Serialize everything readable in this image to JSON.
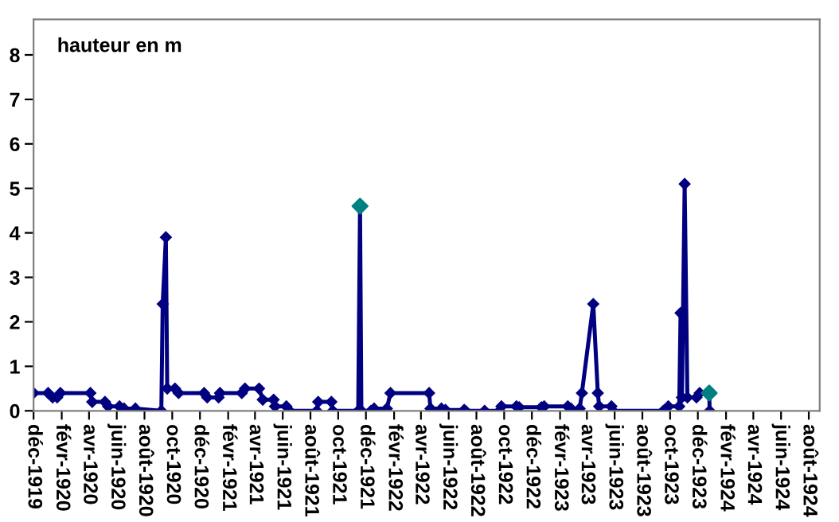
{
  "chart_data": {
    "type": "line",
    "ylabel": "hauteur en m",
    "ylim": [
      0,
      8.8
    ],
    "yticks": [
      0,
      1,
      2,
      3,
      4,
      5,
      6,
      7,
      8
    ],
    "xlim": [
      "1919-12-01",
      "1924-08-25"
    ],
    "xticks": [
      {
        "value": "1919-12",
        "label": "déc-1919"
      },
      {
        "value": "1920-02",
        "label": "févr-1920"
      },
      {
        "value": "1920-04",
        "label": "avr-1920"
      },
      {
        "value": "1920-06",
        "label": "juin-1920"
      },
      {
        "value": "1920-08",
        "label": "août-1920"
      },
      {
        "value": "1920-10",
        "label": "oct-1920"
      },
      {
        "value": "1920-12",
        "label": "déc-1920"
      },
      {
        "value": "1921-02",
        "label": "févr-1921"
      },
      {
        "value": "1921-04",
        "label": "avr-1921"
      },
      {
        "value": "1921-06",
        "label": "juin-1921"
      },
      {
        "value": "1921-08",
        "label": "août-1921"
      },
      {
        "value": "1921-10",
        "label": "oct-1921"
      },
      {
        "value": "1921-12",
        "label": "déc-1921"
      },
      {
        "value": "1922-02",
        "label": "févr-1922"
      },
      {
        "value": "1922-04",
        "label": "avr-1922"
      },
      {
        "value": "1922-06",
        "label": "juin-1922"
      },
      {
        "value": "1922-08",
        "label": "août-1922"
      },
      {
        "value": "1922-10",
        "label": "oct-1922"
      },
      {
        "value": "1922-12",
        "label": "déc-1922"
      },
      {
        "value": "1923-02",
        "label": "févr-1923"
      },
      {
        "value": "1923-04",
        "label": "avr-1923"
      },
      {
        "value": "1923-06",
        "label": "juin-1923"
      },
      {
        "value": "1923-08",
        "label": "août-1923"
      },
      {
        "value": "1923-10",
        "label": "oct-1923"
      },
      {
        "value": "1923-12",
        "label": "déc-1923"
      },
      {
        "value": "1924-02",
        "label": "févr-1924"
      },
      {
        "value": "1924-04",
        "label": "avr-1924"
      },
      {
        "value": "1924-06",
        "label": "juin-1924"
      },
      {
        "value": "1924-08",
        "label": "août-1924"
      }
    ],
    "grid": false,
    "marker": "diamond",
    "line_style": "solid",
    "series": [
      {
        "color": "#000080",
        "x": [
          "1919-12-01",
          "1920-01-02",
          "1920-01-12",
          "1920-01-22",
          "1920-01-29",
          "1920-04-04",
          "1920-04-08",
          "1920-05-06",
          "1920-05-13",
          "1920-06-07",
          "1920-06-17",
          "1920-07-12",
          "1920-09-07",
          "1920-09-10",
          "1920-09-17",
          "1920-09-20",
          "1920-10-07",
          "1920-10-15",
          "1920-12-10",
          "1920-12-17",
          "1921-01-11",
          "1921-01-14",
          "1921-03-03",
          "1921-03-10",
          "1921-04-10",
          "1921-04-18",
          "1921-05-12",
          "1921-05-15",
          "1921-06-09",
          "1921-06-16",
          "1921-08-15",
          "1921-08-18",
          "1921-09-16",
          "1921-09-19",
          "1921-11-14",
          "1921-11-18",
          "1921-11-21",
          "1921-12-12",
          "1921-12-19",
          "1922-01-16",
          "1922-01-24",
          "1922-04-19",
          "1922-04-22",
          "1922-05-16",
          "1922-05-25",
          "1922-07-05",
          "1922-07-08",
          "1922-08-19",
          "1922-09-21",
          "1922-09-25",
          "1922-10-28",
          "1922-11-03",
          "1922-12-22",
          "1922-12-28",
          "1923-02-18",
          "1923-02-25",
          "1923-03-16",
          "1923-03-21",
          "1923-04-15",
          "1923-04-25",
          "1923-04-28",
          "1923-05-25",
          "1923-05-28",
          "1923-09-16",
          "1923-09-27",
          "1923-10-21",
          "1923-10-24",
          "1923-10-27",
          "1923-11-02",
          "1923-11-08",
          "1923-11-28",
          "1923-12-05",
          "1923-12-26",
          "1923-12-27"
        ],
        "values": [
          0.4,
          0.4,
          0.3,
          0.3,
          0.4,
          0.4,
          0.2,
          0.2,
          0.1,
          0.1,
          0.05,
          0.05,
          0,
          2.4,
          3.9,
          0.5,
          0.5,
          0.4,
          0.4,
          0.3,
          0.3,
          0.4,
          0.4,
          0.5,
          0.5,
          0.25,
          0.25,
          0.1,
          0.1,
          0,
          0,
          0.2,
          0.2,
          0,
          0,
          4.6,
          0,
          0,
          0.05,
          0.05,
          0.4,
          0.4,
          0.05,
          0.05,
          0.02,
          0.02,
          0,
          0,
          0,
          0.1,
          0.1,
          0.08,
          0.08,
          0.1,
          0.1,
          0.05,
          0.05,
          0.4,
          2.4,
          0.4,
          0.1,
          0.1,
          0,
          0,
          0.1,
          0.1,
          2.2,
          0.3,
          5.1,
          0.3,
          0.3,
          0.4,
          0.4,
          0
        ]
      },
      {
        "type": "scatter",
        "color": "#008080",
        "x": [
          "1921-11-18",
          "1923-12-26"
        ],
        "values": [
          4.6,
          0.4
        ]
      }
    ]
  }
}
